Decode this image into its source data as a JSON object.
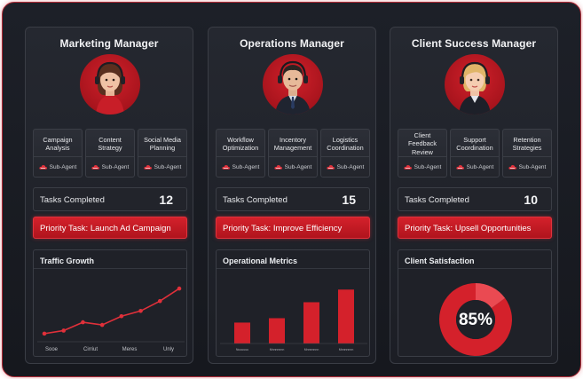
{
  "colors": {
    "accent": "#d4212b",
    "card_bg": "#252830",
    "frame_border": "#b02a36"
  },
  "cards": [
    {
      "title": "Marketing Manager",
      "roles": [
        {
          "name": "Campaign Analysis",
          "tag": "Sub-Agent"
        },
        {
          "name": "Content Strategy",
          "tag": "Sub-Agent"
        },
        {
          "name": "Social Media Planning",
          "tag": "Sub-Agent"
        }
      ],
      "tasks_label": "Tasks Completed",
      "tasks_count": "12",
      "priority_task": "Priority Task:  Launch Ad Campaign",
      "panel_title": "Traffic Growth"
    },
    {
      "title": "Operations Manager",
      "roles": [
        {
          "name": "Workflow Optimization",
          "tag": "Sub-Agent"
        },
        {
          "name": "Incentory Management",
          "tag": "Sub-Agent"
        },
        {
          "name": "Logistics Coordination",
          "tag": "Sub-Agent"
        }
      ],
      "tasks_label": "Tasks Completed",
      "tasks_count": "15",
      "priority_task": "Priority Task:  Improve Efficiency",
      "panel_title": "Operational Metrics"
    },
    {
      "title": "Client Success Manager",
      "roles": [
        {
          "name": "Client Feedback Review",
          "tag": "Sub-Agent"
        },
        {
          "name": "Support Coordination",
          "tag": "Sub-Agent"
        },
        {
          "name": "Retention Strategies",
          "tag": "Sub-Agent"
        }
      ],
      "tasks_label": "Tasks Completed",
      "tasks_count": "10",
      "priority_task": "Priority Task:  Upsell Opportunities",
      "panel_title": "Client Satisfaction"
    }
  ],
  "chart_data": [
    {
      "type": "line",
      "title": "Traffic Growth",
      "x": [
        1,
        2,
        3,
        4,
        5,
        6,
        7,
        8
      ],
      "values": [
        12,
        20,
        42,
        35,
        58,
        72,
        98,
        131
      ],
      "categories": [
        "Sooe",
        "Cirriut",
        "Meres",
        "Unly"
      ],
      "ylim": [
        0,
        150
      ]
    },
    {
      "type": "bar",
      "title": "Operational Metrics",
      "categories": [
        "Nuuuuuu",
        "Mnnnnnnn",
        "Mnnnnnnn",
        "Mnnnnnnn"
      ],
      "values": [
        38,
        46,
        75,
        98
      ],
      "ylim": [
        0,
        100
      ]
    },
    {
      "type": "pie",
      "title": "Client Satisfaction",
      "values": [
        85,
        15
      ],
      "center_label": "85%"
    }
  ]
}
